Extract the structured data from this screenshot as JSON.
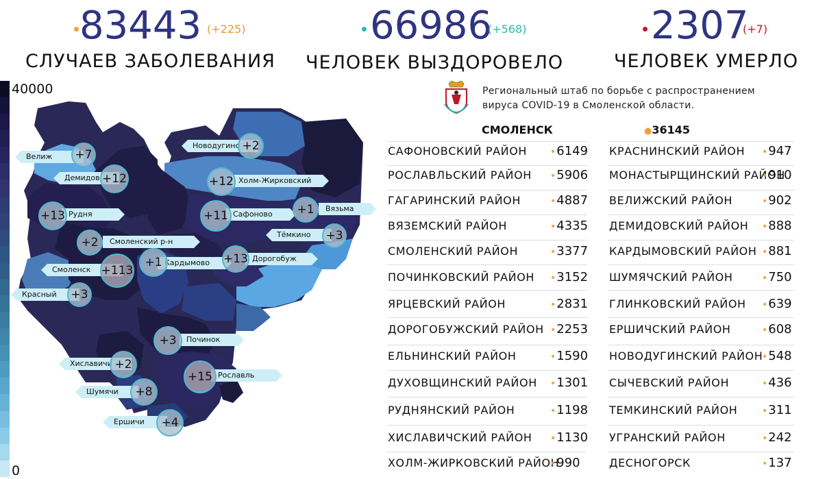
{
  "stats": [
    {
      "number": "83443",
      "delta": "(+225)",
      "caption": "СЛУЧАЕВ ЗАБОЛЕВАНИЯ",
      "dot_color": "#f2a23a",
      "delta_color": "#e79a3a"
    },
    {
      "number": "66986",
      "delta": "(+568)",
      "caption": "ЧЕЛОВЕК ВЫЗДОРОВЕЛО",
      "dot_color": "#2bbbad",
      "delta_color": "#2bbbad"
    },
    {
      "number": "2307",
      "delta": "(+7)",
      "caption": "ЧЕЛОВЕК УМЕРЛО",
      "dot_color": "#c0172b",
      "delta_color": "#c0172b"
    }
  ],
  "scale": {
    "max": "40000",
    "min": "0"
  },
  "header": {
    "line1": "Региональный штаб по борьбе с распространением",
    "line2": "вируса  COVID-19 в Смоленской области."
  },
  "city": {
    "name": "СМОЛЕНСК",
    "value": "36145"
  },
  "table_left": [
    {
      "name": "САФОНОВСКИЙ РАЙОН",
      "value": "6149"
    },
    {
      "name": "РОСЛАВЛЬСКИЙ РАЙОН",
      "value": "5906"
    },
    {
      "name": "ГАГАРИНСКИЙ РАЙОН",
      "value": "4887"
    },
    {
      "name": "ВЯЗЕМСКИЙ РАЙОН",
      "value": "4335"
    },
    {
      "name": "СМОЛЕНСКИЙ РАЙОН",
      "value": "3377"
    },
    {
      "name": "ПОЧИНКОВСКИЙ РАЙОН",
      "value": "3152"
    },
    {
      "name": "ЯРЦЕВСКИЙ РАЙОН",
      "value": "2831"
    },
    {
      "name": "ДОРОГОБУЖСКИЙ РАЙОН",
      "value": "2253"
    },
    {
      "name": "ЕЛЬНИНСКИЙ РАЙОН",
      "value": "1590"
    },
    {
      "name": "ДУХОВЩИНСКИЙ РАЙОН",
      "value": "1301"
    },
    {
      "name": "РУДНЯНСКИЙ РАЙОН",
      "value": "1198"
    },
    {
      "name": "ХИСЛАВИЧСКИЙ РАЙОН",
      "value": "1130"
    },
    {
      "name": "ХОЛМ-ЖИРКОВСКИЙ РАЙОН",
      "value": "990"
    }
  ],
  "table_right": [
    {
      "name": "КРАСНИНСКИЙ РАЙОН",
      "value": "947"
    },
    {
      "name": "МОНАСТЫРЩИНСКИЙ РАЙОН",
      "value": "910"
    },
    {
      "name": "ВЕЛИЖСКИЙ РАЙОН",
      "value": "902"
    },
    {
      "name": "ДЕМИДОВСКИЙ РАЙОН",
      "value": "888"
    },
    {
      "name": "КАРДЫМОВСКИЙ РАЙОН",
      "value": "881"
    },
    {
      "name": "ШУМЯЧСКИЙ РАЙОН",
      "value": "750"
    },
    {
      "name": "ГЛИНКОВСКИЙ РАЙОН",
      "value": "639"
    },
    {
      "name": "ЕРШИЧСКИЙ РАЙОН",
      "value": "608"
    },
    {
      "name": "НОВОДУГИНСКИЙ РАЙОН",
      "value": "548"
    },
    {
      "name": "СЫЧЕВСКИЙ РАЙОН",
      "value": "436"
    },
    {
      "name": "ТЕМКИНСКИЙ РАЙОН",
      "value": "311"
    },
    {
      "name": "УГРАНСКИЙ РАЙОН",
      "value": "242"
    },
    {
      "name": "ДЕСНОГОРСК",
      "value": "137"
    }
  ],
  "map_labels": {
    "velizh": "Велиж",
    "demidov": "Демидов",
    "rudnya": "Рудня",
    "smolensky": "Смоленский р-н",
    "smolensk": "Смоленск",
    "krasny": "Красный",
    "khislavichi": "Хиславичи",
    "shumyachi": "Шумячи",
    "ershichi": "Ершичи",
    "novoduguino": "Новодугино",
    "kholm": "Холм-Жирковский",
    "vyazma": "Вязьма",
    "safonovo": "Сафоново",
    "temkino": "Тёмкино",
    "kardymovo": "Кардымово",
    "dorogobuzh": "Дорогобуж",
    "pochinok": "Починок",
    "roslavl": "Рославль"
  },
  "map_bubbles": {
    "velizh": "+7",
    "demidov": "+12",
    "rudnya": "+13",
    "smolensky": "+2",
    "smolensk": "+113",
    "krasny": "+3",
    "khislavichi": "+2",
    "shumyachi": "+8",
    "ershichi": "+4",
    "novoduguino": "+2",
    "kholm": "+12",
    "vyazma": "+1",
    "safonovo": "+11",
    "temkino": "+3",
    "kardymovo": "+1",
    "dorogobuzh": "+13",
    "pochinok": "+3",
    "roslavl": "+15"
  },
  "colors": {
    "accent": "#2e3480",
    "bullet": "#f2a23a",
    "label_bg": "#cdeef7",
    "bubble_border": "#4fb7cf"
  }
}
